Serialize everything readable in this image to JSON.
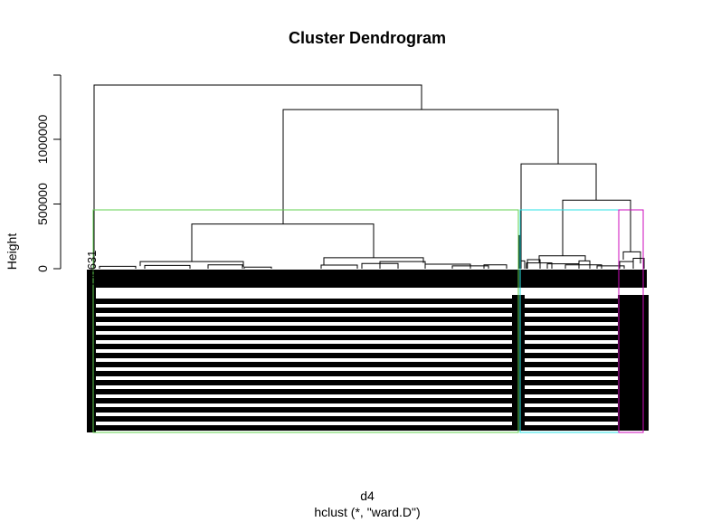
{
  "chart_data": {
    "type": "dendrogram",
    "title": "Cluster Dendrogram",
    "xlabel": "d4",
    "ylabel": "Height",
    "sub": "hclust (*, \"ward.D\")",
    "ylim": [
      0,
      1450000
    ],
    "yticks": [
      0,
      500000,
      1000000
    ],
    "ytick_labels": [
      "0",
      "500000",
      "1000000"
    ],
    "leaf_label_visible": "556631",
    "merges": [
      {
        "name": "root",
        "height": 1420000
      },
      {
        "name": "right-group",
        "height": 1230000
      },
      {
        "name": "cluster-1",
        "height": 345000
      },
      {
        "name": "right-inner",
        "height": 810000
      },
      {
        "name": "right-sub",
        "height": 530000
      },
      {
        "name": "cluster-1-right",
        "height": 85000
      },
      {
        "name": "cluster-1-left",
        "height": 55000
      },
      {
        "name": "cluster-2-node",
        "height": 100000
      },
      {
        "name": "cluster-3-node",
        "height": 130000
      }
    ],
    "cluster_boxes": [
      {
        "name": "cluster-1",
        "color": "#61D04F"
      },
      {
        "name": "cluster-2",
        "color": "#28E2E5"
      },
      {
        "name": "cluster-3",
        "color": "#CD0BBC"
      }
    ],
    "colors": {
      "tree": "#000000",
      "axis": "#000000"
    }
  }
}
